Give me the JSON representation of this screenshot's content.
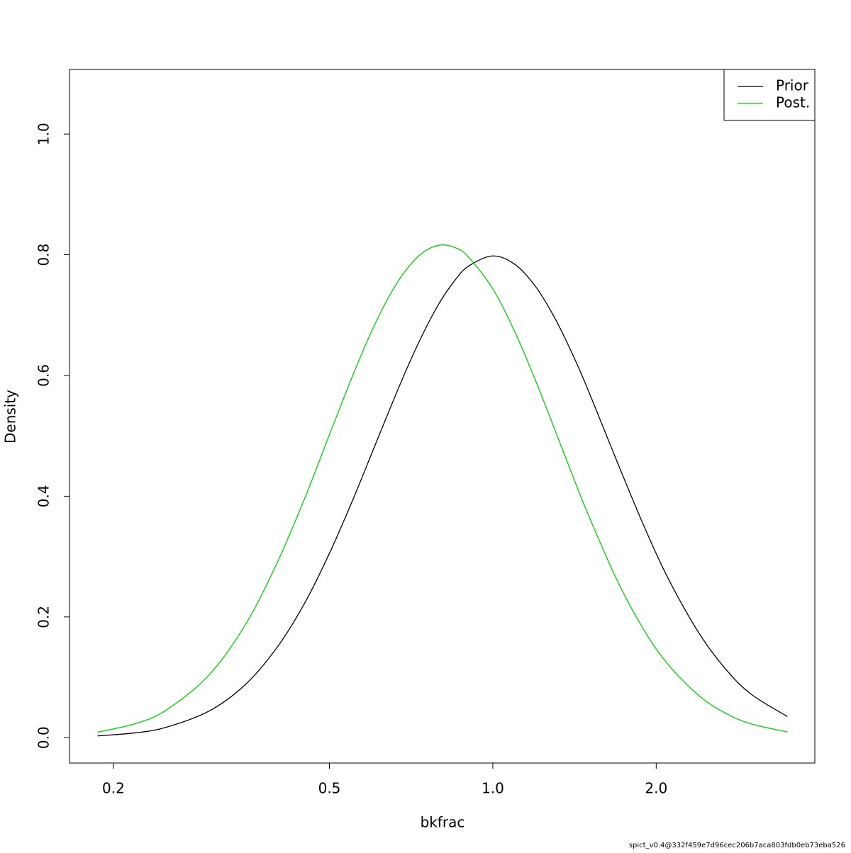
{
  "chart_data": {
    "type": "line",
    "x_label": "bkfrac",
    "y_label": "Density",
    "footnote": "spict_v0.4@332f459e7d96cec206b7aca803fdb0eb73eba526",
    "x": [
      0.187,
      0.22,
      0.25,
      0.3,
      0.35,
      0.4,
      0.45,
      0.5,
      0.55,
      0.6,
      0.65,
      0.7,
      0.75,
      0.8,
      0.85,
      0.9,
      1.0,
      1.1,
      1.2,
      1.3,
      1.4,
      1.5,
      1.7,
      1.9,
      2.1,
      2.4,
      2.7,
      3.0,
      3.49
    ],
    "series": [
      {
        "name": "Prior",
        "color": "#000000",
        "values": [
          0.0029,
          0.0081,
          0.0171,
          0.044,
          0.088,
          0.149,
          0.2226,
          0.3053,
          0.3903,
          0.4735,
          0.5503,
          0.6185,
          0.676,
          0.7224,
          0.7567,
          0.7805,
          0.798,
          0.7836,
          0.7468,
          0.6956,
          0.6367,
          0.5749,
          0.454,
          0.35,
          0.2653,
          0.1726,
          0.1111,
          0.0713,
          0.035
        ]
      },
      {
        "name": "Post.",
        "color": "#00cd00",
        "values": [
          0.0091,
          0.0234,
          0.0455,
          0.1037,
          0.1871,
          0.2885,
          0.3959,
          0.5018,
          0.5965,
          0.676,
          0.7374,
          0.7804,
          0.806,
          0.816,
          0.8121,
          0.7971,
          0.7435,
          0.6706,
          0.5907,
          0.511,
          0.4363,
          0.3689,
          0.2579,
          0.178,
          0.1221,
          0.0692,
          0.0393,
          0.0225,
          0.0094
        ]
      }
    ],
    "x_log": true,
    "xlim": [
      0.166,
      3.92
    ],
    "ylim": [
      -0.042,
      1.107
    ],
    "xticks": [
      0.2,
      0.5,
      {
        "value": 1,
        "label": "1.0"
      },
      {
        "value": 2,
        "label": "2.0"
      }
    ],
    "yticks": [
      {
        "value": 0,
        "label": "0.0"
      },
      0.2,
      0.4,
      0.6,
      0.8,
      {
        "value": 1,
        "label": "1.0"
      }
    ],
    "legend": "topright",
    "grid": false
  }
}
